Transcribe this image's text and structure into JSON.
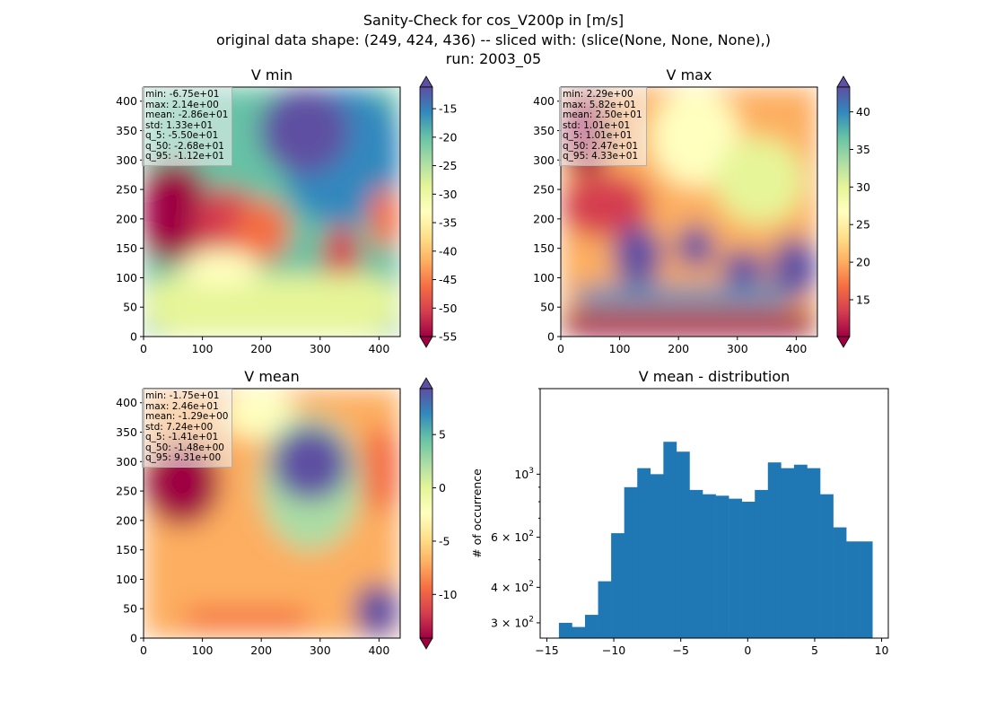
{
  "title": {
    "line1": "Sanity-Check for cos_V200p in [m/s]",
    "line2": "original data shape: (249, 424, 436) -- sliced with: (slice(None, None, None),)",
    "line3": "run: 2003_05"
  },
  "colors": {
    "spectral": [
      "#9e0142",
      "#d53e4f",
      "#f46d43",
      "#fdae61",
      "#fee08b",
      "#ffffbf",
      "#e6f598",
      "#abdda4",
      "#66c2a5",
      "#3288bd",
      "#5e4fa2"
    ],
    "histogram": "#1f77b4"
  },
  "panels": [
    {
      "title": "V min",
      "stats": [
        "min: -6.75e+01",
        "max: 2.14e+00",
        "mean: -2.86e+01",
        "std: 1.33e+01",
        "q_5: -5.50e+01",
        "q_50: -2.68e+01",
        "q_95: -1.12e+01"
      ],
      "colorbar_ticks": [
        "-15",
        "-20",
        "-25",
        "-30",
        "-35",
        "-40",
        "-45",
        "-50",
        "-55"
      ],
      "colorbar_range": [
        -55.0,
        -11.2
      ]
    },
    {
      "title": "V max",
      "stats": [
        "min: 2.29e+00",
        "max: 5.82e+01",
        "mean: 2.50e+01",
        "std: 1.01e+01",
        "q_5: 1.01e+01",
        "q_50: 2.47e+01",
        "q_95: 4.33e+01"
      ],
      "colorbar_ticks": [
        "40",
        "35",
        "30",
        "25",
        "20",
        "15"
      ],
      "colorbar_range": [
        10.1,
        43.3
      ]
    },
    {
      "title": "V mean",
      "stats": [
        "min: -1.75e+01",
        "max: 2.46e+01",
        "mean: -1.29e+00",
        "std: 7.24e+00",
        "q_5: -1.41e+01",
        "q_50: -1.48e+00",
        "q_95: 9.31e+00"
      ],
      "colorbar_ticks": [
        "5",
        "0",
        "-5",
        "-10"
      ],
      "colorbar_range": [
        -14.1,
        9.31
      ]
    }
  ],
  "map_axes": {
    "x_ticks": [
      "0",
      "100",
      "200",
      "300",
      "400"
    ],
    "y_ticks": [
      "0",
      "50",
      "100",
      "150",
      "200",
      "250",
      "300",
      "350",
      "400"
    ],
    "x_range": [
      0,
      436
    ],
    "y_range": [
      0,
      424
    ]
  },
  "chart_data": {
    "type": "bar",
    "title": "V mean - distribution",
    "xlabel": "",
    "ylabel": "# of occurrence",
    "x_range": [
      -14.1,
      9.31
    ],
    "y_scale": "log",
    "y_range": [
      265,
      2000
    ],
    "x_ticks": [
      "−15",
      "−10",
      "−5",
      "0",
      "5",
      "10"
    ],
    "y_tick_labels": [
      "3 × 10^2",
      "4 × 10^2",
      "6 × 10^2",
      "10^3"
    ],
    "y_tick_values": [
      300,
      400,
      600,
      1000
    ],
    "bin_centers": [
      -13.5,
      -12.5,
      -11.5,
      -10.5,
      -9.5,
      -8.5,
      -7.5,
      -6.5,
      -5.5,
      -4.5,
      -3.5,
      -2.5,
      -1.5,
      -0.5,
      0.5,
      1.5,
      2.5,
      3.5,
      4.5,
      5.5,
      6.5,
      7.5,
      8.5,
      9.0
    ],
    "values": [
      300,
      290,
      320,
      420,
      620,
      900,
      1050,
      1000,
      1300,
      1200,
      880,
      850,
      840,
      820,
      800,
      880,
      1100,
      1050,
      1080,
      1050,
      850,
      650,
      580,
      580
    ]
  }
}
